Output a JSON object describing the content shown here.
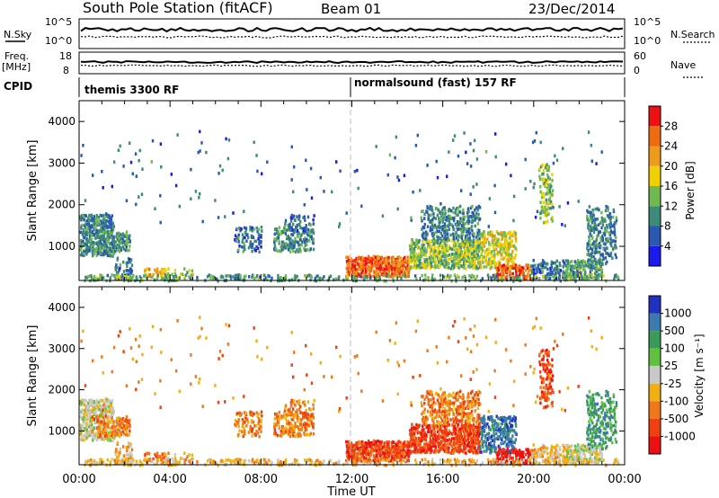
{
  "header": {
    "station": "South Pole Station (fitACF)",
    "beam": "Beam 01",
    "date": "23/Dec/2014"
  },
  "noise_panel": {
    "left_label": "N.Sky",
    "left_ticks": [
      "10^5",
      "10^0"
    ],
    "right_label": "N.Search",
    "right_ticks": [
      "10^5",
      "10^0"
    ]
  },
  "freq_panel": {
    "left_label_1": "Freq.",
    "left_label_2": "[MHz]",
    "left_ticks": [
      "18",
      "8"
    ],
    "right_label": "Nave",
    "right_ticks": [
      "60",
      "0"
    ]
  },
  "cpid_panel": {
    "label": "CPID",
    "programs": [
      "themis 3300 RF",
      "normalsound (fast) 157 RF"
    ]
  },
  "chart_data": [
    {
      "type": "heatmap",
      "title": "",
      "xlabel": "Time UT",
      "ylabel": "Slant Range [km]",
      "colorbar_label": "Power [dB]",
      "x_ticks": [
        "00:00",
        "04:00",
        "08:00",
        "12:00",
        "16:00",
        "20:00",
        "00:00"
      ],
      "x_range_hours": [
        0,
        24
      ],
      "y_ticks": [
        1000,
        2000,
        3000,
        4000
      ],
      "ylim": [
        180,
        4500
      ],
      "colorbar_ticks": [
        4,
        8,
        12,
        16,
        20,
        24,
        28
      ],
      "colorbar_range": [
        0,
        32
      ],
      "colors": [
        "#1a1aee",
        "#2a5ab0",
        "#3e8a78",
        "#70b850",
        "#f0d000",
        "#f09a1a",
        "#f06a10",
        "#ee1010"
      ]
    },
    {
      "type": "heatmap",
      "title": "",
      "xlabel": "Time UT",
      "ylabel": "Slant Range [km]",
      "colorbar_label": "Velocity [m s⁻¹]",
      "x_ticks": [
        "00:00",
        "04:00",
        "08:00",
        "12:00",
        "16:00",
        "20:00",
        "00:00"
      ],
      "x_range_hours": [
        0,
        24
      ],
      "y_ticks": [
        1000,
        2000,
        3000,
        4000
      ],
      "ylim": [
        180,
        4500
      ],
      "colorbar_ticks": [
        "1000",
        "500",
        "100",
        "25",
        "-25",
        "-100",
        "-500",
        "-1000"
      ],
      "colors": [
        "#2030c0",
        "#3a7ab0",
        "#3a9a5a",
        "#60c040",
        "#c8c8c8",
        "#f0b010",
        "#f07818",
        "#f04010",
        "#ee1010"
      ]
    }
  ]
}
